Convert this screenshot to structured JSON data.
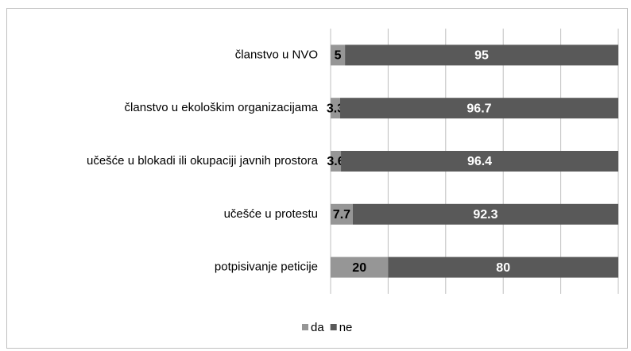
{
  "chart_data": {
    "type": "stacked_barh",
    "categories": [
      "članstvo u NVO",
      "članstvo u ekološkim organizacijama",
      "učešće u blokadi ili okupaciji javnih prostora",
      "učešće u protestu",
      "potpisivanje peticije"
    ],
    "series": [
      {
        "name": "da",
        "color": "#969696",
        "values": [
          5,
          3.3,
          3.6,
          7.7,
          20
        ]
      },
      {
        "name": "ne",
        "color": "#595959",
        "values": [
          95,
          96.7,
          96.4,
          92.3,
          80
        ]
      }
    ],
    "xlim": [
      0,
      100
    ],
    "xticks": [
      0,
      20,
      40,
      60,
      80,
      100
    ],
    "grid": true,
    "legend": "bottom"
  }
}
